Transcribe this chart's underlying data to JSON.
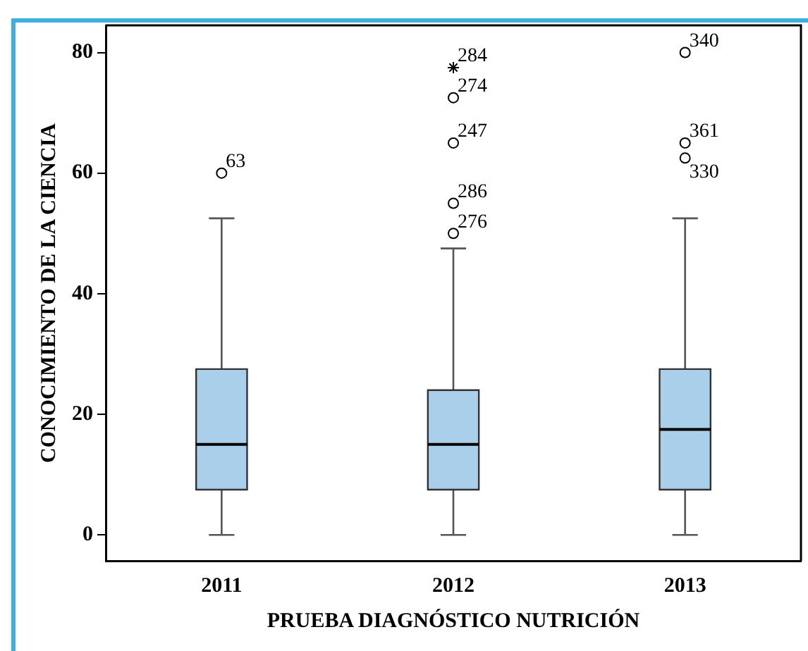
{
  "chart_data": {
    "type": "box",
    "xlabel": "PRUEBA DIAGNÓSTICO NUTRICIÓN",
    "ylabel": "CONOCIMIENTO DE LA CIENCIA",
    "categories": [
      "2011",
      "2012",
      "2013"
    ],
    "series": [
      {
        "type": "box",
        "color": "#aacfea",
        "boxes": [
          {
            "low": 0,
            "q1": 7.5,
            "median": 15,
            "q3": 27.5,
            "high": 52.5,
            "outliers": [
              60
            ]
          },
          {
            "low": 0,
            "q1": 7.5,
            "median": 15,
            "q3": 24,
            "high": 47.5,
            "outliers": [
              50,
              55,
              65,
              72.5
            ]
          },
          {
            "low": 0,
            "q1": 7.5,
            "median": 17.5,
            "q3": 27.5,
            "high": 52.5,
            "outliers": [
              62.5,
              65,
              80
            ]
          }
        ]
      },
      {
        "type": "scatter",
        "marker": "cross",
        "color": "#000000",
        "values": [
          null,
          77.5,
          null
        ]
      }
    ],
    "ylim": [
      -4.3,
      84.5
    ],
    "yticks": [
      0,
      20,
      40,
      60,
      80
    ],
    "grid": false,
    "legend": false,
    "annotations": [
      "63",
      "276",
      "286",
      "247",
      "274",
      "330",
      "361",
      "340",
      "284"
    ]
  }
}
